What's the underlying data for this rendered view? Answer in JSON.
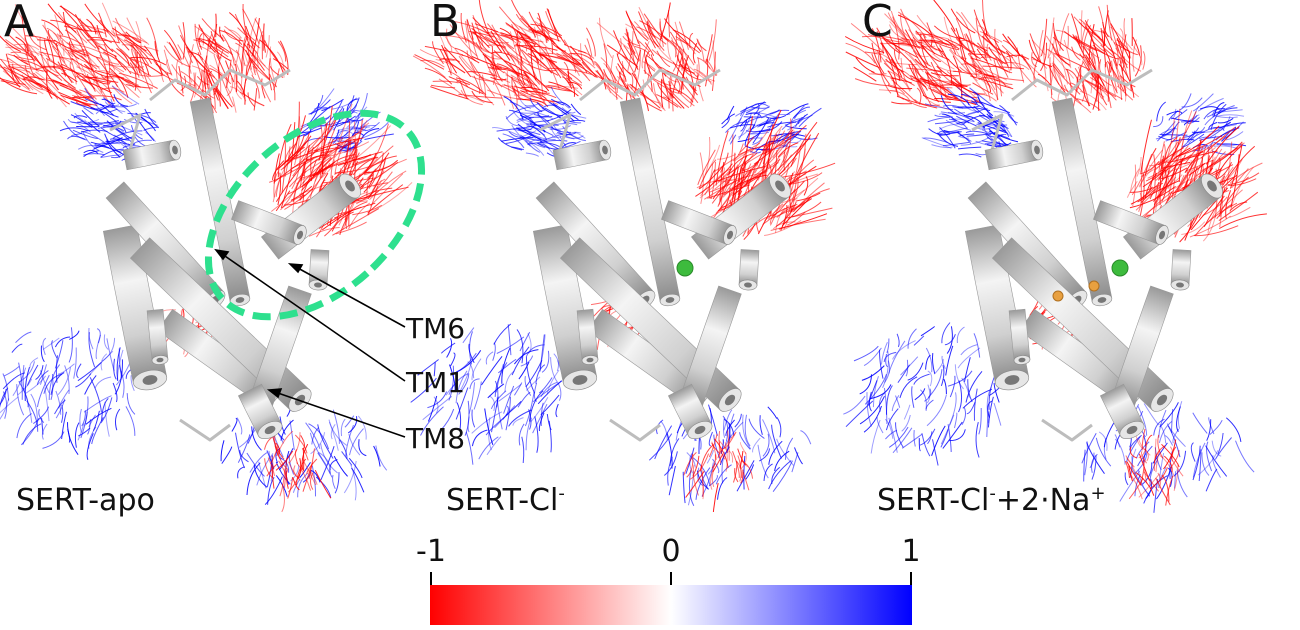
{
  "panels": [
    {
      "letter": "A",
      "caption_base": "SERT-apo",
      "caption_sup1": "",
      "caption_mid": "",
      "caption_sup2": ""
    },
    {
      "letter": "B",
      "caption_base": "SERT-Cl",
      "caption_sup1": "-",
      "caption_mid": "",
      "caption_sup2": ""
    },
    {
      "letter": "C",
      "caption_base": "SERT-Cl",
      "caption_sup1": "-",
      "caption_mid": "+2·Na",
      "caption_sup2": "+"
    }
  ],
  "helix_labels": [
    "TM6",
    "TM1",
    "TM8"
  ],
  "colorbar": {
    "min_label": "-1",
    "mid_label": "0",
    "max_label": "1",
    "color_min": "#ff0000",
    "color_mid": "#ffffff",
    "color_max": "#0000ff"
  },
  "highlight_color": "#2ee08e",
  "ion_colors": {
    "chloride": "#3dbb3d",
    "sodium": "#e8a040"
  }
}
